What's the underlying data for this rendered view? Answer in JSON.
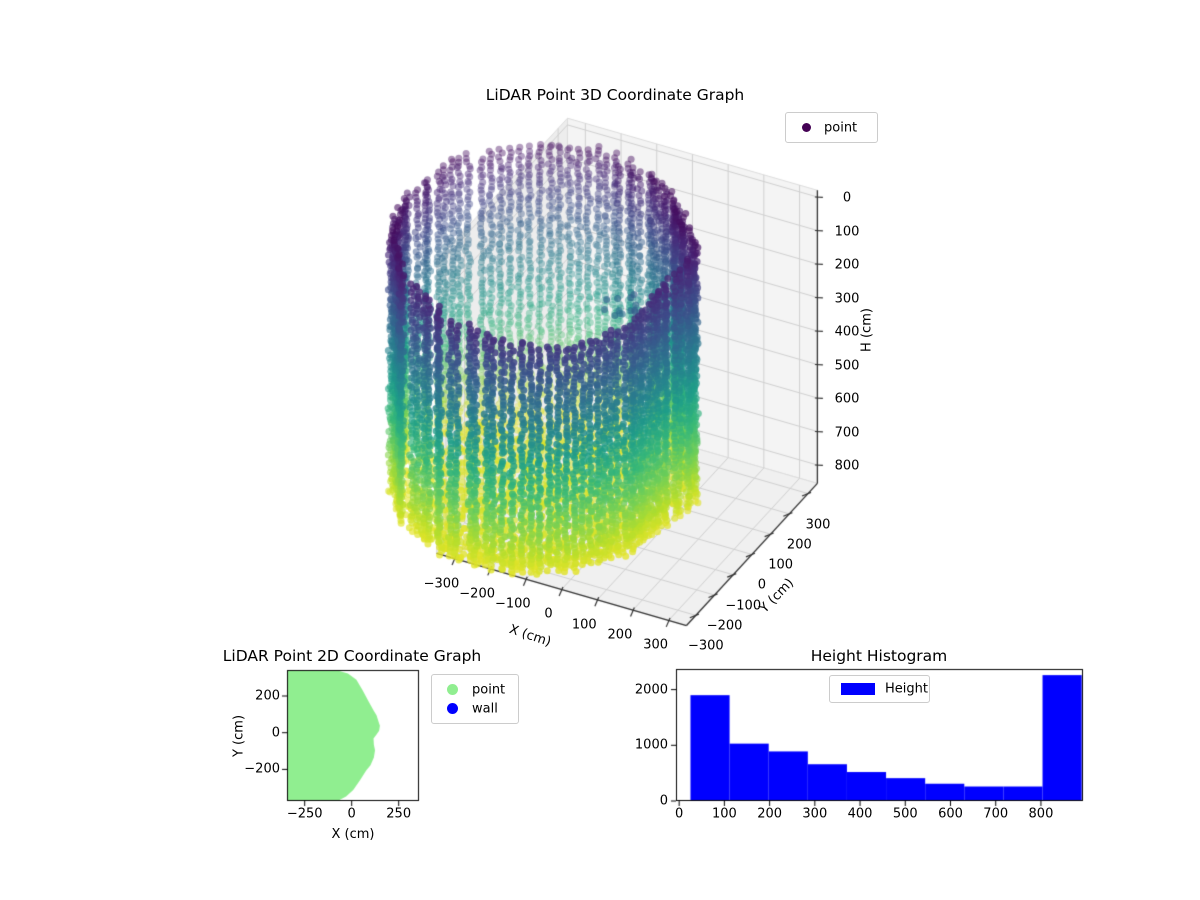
{
  "figure": {
    "background": "#ffffff"
  },
  "chart_data": [
    {
      "type": "scatter3d",
      "title": "LiDAR Point 3D Coordinate Graph",
      "xlabel": "X (cm)",
      "ylabel": "Y (cm)",
      "zlabel": "H (cm)",
      "xticks": [
        -300,
        -200,
        -100,
        0,
        100,
        200,
        300
      ],
      "yticks": [
        300,
        200,
        100,
        0,
        -100,
        -200,
        -300
      ],
      "zticks": [
        0,
        100,
        200,
        300,
        400,
        500,
        600,
        700,
        800
      ],
      "xlim": [
        -350,
        350
      ],
      "ylim": [
        -350,
        350
      ],
      "zlim": [
        -20,
        855
      ],
      "zaxis_inverted": true,
      "grid": true,
      "legend": [
        {
          "label": "point",
          "color": "#440154"
        }
      ],
      "colormap": "viridis",
      "colormap_stops": [
        "#440154",
        "#482878",
        "#3e4989",
        "#31688e",
        "#26828e",
        "#1f9e89",
        "#35b779",
        "#6ece58",
        "#b5de2b",
        "#fde725"
      ],
      "color_by": "height_cm",
      "color_range": [
        0,
        850
      ],
      "point_cloud": {
        "shape": "room-scan cylinder: walls of vertical dot columns, open top, bowl floor",
        "center_xy": [
          -150,
          -30
        ],
        "radius_base": 355,
        "radius_cos": -80,
        "radius_sin": -15,
        "nose_angle": 0.35,
        "nose_amp": 38,
        "nose_width": 0.05,
        "rim_top_h_back": 22,
        "rim_top_h_front_extra": 108,
        "wall_bottom_h": 818,
        "floor_h": 800,
        "columns": 100,
        "column_h_step": 11.5,
        "cluster": {
          "center": [
            -40,
            55
          ],
          "h_range": [
            245,
            320
          ],
          "count": 14
        }
      }
    },
    {
      "type": "scatter",
      "title": "LiDAR Point 2D Coordinate Graph",
      "xlabel": "X (cm)",
      "ylabel": "Y (cm)",
      "xticks": [
        -250,
        0,
        250
      ],
      "yticks": [
        200,
        0,
        -200
      ],
      "xlim": [
        -346,
        356
      ],
      "ylim": [
        -374,
        338
      ],
      "legend": [
        {
          "label": "point",
          "color": "#90ee90"
        },
        {
          "label": "wall",
          "color": "#0000ff"
        }
      ],
      "fill_color": "#90ee90",
      "region_outline": [
        [
          -346,
          -374
        ],
        [
          -346,
          338
        ],
        [
          -70,
          338
        ],
        [
          -20,
          322
        ],
        [
          25,
          288
        ],
        [
          58,
          232
        ],
        [
          90,
          170
        ],
        [
          118,
          118
        ],
        [
          132,
          95
        ],
        [
          143,
          60
        ],
        [
          150,
          38
        ],
        [
          146,
          10
        ],
        [
          132,
          -10
        ],
        [
          116,
          -32
        ],
        [
          118,
          -65
        ],
        [
          124,
          -95
        ],
        [
          118,
          -135
        ],
        [
          100,
          -178
        ],
        [
          78,
          -205
        ],
        [
          45,
          -258
        ],
        [
          8,
          -312
        ],
        [
          -30,
          -348
        ],
        [
          -78,
          -374
        ]
      ]
    },
    {
      "type": "histogram",
      "title": "Height Histogram",
      "legend": [
        {
          "label": "Height",
          "color": "#0000ff"
        }
      ],
      "bar_color": "#0000ff",
      "bin_start": 25,
      "bin_width": 86.5,
      "values": [
        1900,
        1030,
        890,
        660,
        520,
        410,
        310,
        260,
        260,
        2260
      ],
      "xticks": [
        0,
        100,
        200,
        300,
        400,
        500,
        600,
        700,
        800
      ],
      "yticks": [
        0,
        1000,
        2000
      ],
      "xlim": [
        -7,
        893
      ],
      "ylim": [
        0,
        2370
      ]
    }
  ]
}
